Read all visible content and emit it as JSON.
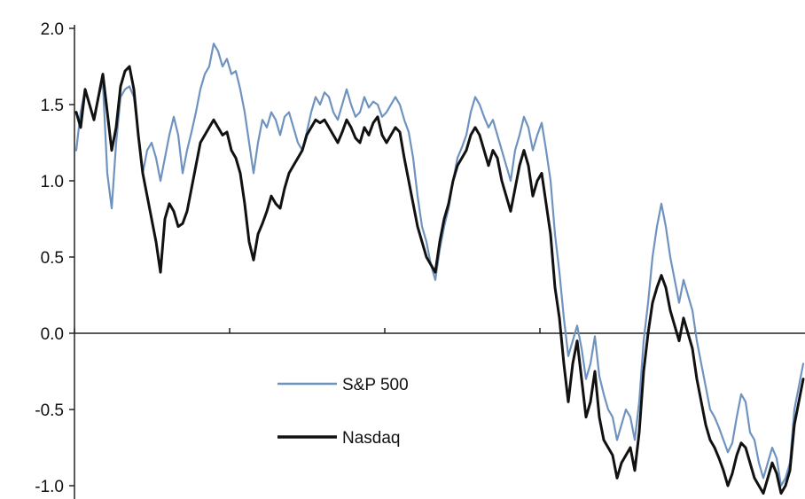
{
  "chart_data": {
    "type": "line",
    "title": "",
    "xlabel": "",
    "ylabel": "",
    "ylim": [
      -1.05,
      2.0
    ],
    "yticks": [
      2.0,
      1.5,
      1.0,
      0.5,
      0.0,
      -0.5,
      -1.0
    ],
    "ytick_labels": [
      "2.0",
      "1.5",
      "1.0",
      "0.5",
      "0.0",
      "-0.5",
      "-1.0"
    ],
    "x_tick_marks": 5,
    "grid": false,
    "zero_line": true,
    "legend_position": "lower-center",
    "x": [
      0,
      5,
      10,
      15,
      20,
      25,
      30,
      35,
      40,
      45,
      50,
      55,
      60,
      65,
      70,
      75,
      80,
      85,
      90,
      95,
      100,
      105,
      110,
      115,
      120,
      125,
      130,
      135,
      140,
      145,
      150,
      155,
      160,
      165,
      170,
      175,
      180,
      185,
      190,
      195,
      200,
      205,
      210,
      215,
      220,
      225,
      230,
      235,
      240,
      245,
      250,
      255,
      260,
      265,
      270,
      275,
      280,
      285,
      290,
      295,
      300,
      305,
      310,
      315,
      320,
      325,
      330,
      335,
      340,
      345,
      350,
      355,
      360,
      365,
      370,
      375,
      380,
      385,
      390,
      395,
      400,
      405,
      410,
      415,
      420,
      425,
      430,
      435,
      440,
      445,
      450,
      455,
      460,
      465,
      470,
      475,
      480,
      485,
      490,
      495,
      500,
      505,
      510,
      515,
      520,
      525,
      530,
      535,
      540,
      545,
      550,
      555,
      560,
      565,
      570,
      575,
      580,
      585,
      590,
      595,
      600,
      605,
      610,
      615,
      620,
      625,
      630,
      635,
      640,
      645,
      650,
      655,
      660,
      665,
      670,
      675,
      680,
      685,
      690,
      695,
      700,
      705,
      710,
      715,
      720,
      725,
      730,
      735,
      740,
      745,
      750,
      755,
      760,
      765,
      770,
      775,
      780,
      785,
      790,
      795,
      800,
      805,
      810,
      815,
      820
    ],
    "series": [
      {
        "name": "S&P 500",
        "color": "#6f93bf",
        "values": [
          1.2,
          1.45,
          1.6,
          1.5,
          1.4,
          1.55,
          1.65,
          1.05,
          0.82,
          1.25,
          1.55,
          1.6,
          1.62,
          1.55,
          1.3,
          1.05,
          1.2,
          1.25,
          1.15,
          1.0,
          1.15,
          1.3,
          1.42,
          1.3,
          1.05,
          1.2,
          1.32,
          1.45,
          1.6,
          1.7,
          1.75,
          1.9,
          1.85,
          1.75,
          1.8,
          1.7,
          1.72,
          1.6,
          1.45,
          1.25,
          1.05,
          1.25,
          1.4,
          1.35,
          1.45,
          1.4,
          1.3,
          1.42,
          1.45,
          1.35,
          1.25,
          1.2,
          1.32,
          1.45,
          1.55,
          1.5,
          1.58,
          1.55,
          1.45,
          1.4,
          1.5,
          1.6,
          1.5,
          1.42,
          1.45,
          1.55,
          1.48,
          1.52,
          1.5,
          1.42,
          1.45,
          1.5,
          1.55,
          1.5,
          1.4,
          1.32,
          1.15,
          0.9,
          0.7,
          0.6,
          0.45,
          0.35,
          0.55,
          0.7,
          0.82,
          1.0,
          1.15,
          1.22,
          1.3,
          1.45,
          1.55,
          1.5,
          1.42,
          1.35,
          1.4,
          1.3,
          1.2,
          1.1,
          1.0,
          1.2,
          1.3,
          1.42,
          1.35,
          1.2,
          1.3,
          1.38,
          1.2,
          1.0,
          0.65,
          0.4,
          0.1,
          -0.15,
          -0.05,
          0.05,
          -0.1,
          -0.3,
          -0.2,
          -0.02,
          -0.28,
          -0.4,
          -0.5,
          -0.55,
          -0.7,
          -0.6,
          -0.5,
          -0.55,
          -0.7,
          -0.45,
          -0.05,
          0.2,
          0.5,
          0.7,
          0.85,
          0.7,
          0.5,
          0.35,
          0.2,
          0.35,
          0.25,
          0.15,
          -0.05,
          -0.2,
          -0.35,
          -0.5,
          -0.55,
          -0.62,
          -0.7,
          -0.78,
          -0.72,
          -0.55,
          -0.4,
          -0.45,
          -0.65,
          -0.7,
          -0.85,
          -0.95,
          -0.85,
          -0.75,
          -0.82,
          -1.0,
          -0.95,
          -0.85,
          -0.5,
          -0.35,
          -0.2
        ]
      },
      {
        "name": "Nasdaq",
        "color": "#111111",
        "values": [
          1.45,
          1.35,
          1.6,
          1.5,
          1.4,
          1.55,
          1.7,
          1.45,
          1.2,
          1.35,
          1.62,
          1.72,
          1.75,
          1.6,
          1.3,
          1.05,
          0.9,
          0.75,
          0.6,
          0.4,
          0.75,
          0.85,
          0.8,
          0.7,
          0.72,
          0.8,
          0.95,
          1.1,
          1.25,
          1.3,
          1.35,
          1.4,
          1.35,
          1.3,
          1.32,
          1.2,
          1.15,
          1.05,
          0.85,
          0.6,
          0.48,
          0.65,
          0.72,
          0.8,
          0.9,
          0.85,
          0.82,
          0.95,
          1.05,
          1.1,
          1.15,
          1.2,
          1.3,
          1.35,
          1.4,
          1.38,
          1.4,
          1.35,
          1.3,
          1.25,
          1.32,
          1.4,
          1.35,
          1.28,
          1.25,
          1.35,
          1.3,
          1.38,
          1.42,
          1.3,
          1.25,
          1.3,
          1.35,
          1.32,
          1.15,
          1.0,
          0.85,
          0.7,
          0.6,
          0.5,
          0.45,
          0.4,
          0.6,
          0.75,
          0.85,
          1.0,
          1.1,
          1.15,
          1.2,
          1.3,
          1.35,
          1.3,
          1.2,
          1.1,
          1.2,
          1.15,
          1.0,
          0.9,
          0.8,
          0.95,
          1.1,
          1.2,
          1.1,
          0.9,
          1.0,
          1.05,
          0.85,
          0.65,
          0.3,
          0.1,
          -0.2,
          -0.45,
          -0.2,
          -0.05,
          -0.3,
          -0.55,
          -0.45,
          -0.25,
          -0.55,
          -0.7,
          -0.75,
          -0.8,
          -0.95,
          -0.85,
          -0.8,
          -0.75,
          -0.9,
          -0.65,
          -0.25,
          0.0,
          0.2,
          0.3,
          0.38,
          0.3,
          0.15,
          0.05,
          -0.05,
          0.1,
          0.0,
          -0.1,
          -0.3,
          -0.45,
          -0.6,
          -0.7,
          -0.75,
          -0.82,
          -0.9,
          -1.0,
          -0.92,
          -0.8,
          -0.72,
          -0.75,
          -0.85,
          -0.95,
          -1.0,
          -1.05,
          -0.95,
          -0.85,
          -0.92,
          -1.05,
          -1.0,
          -0.9,
          -0.6,
          -0.45,
          -0.3
        ]
      }
    ]
  }
}
